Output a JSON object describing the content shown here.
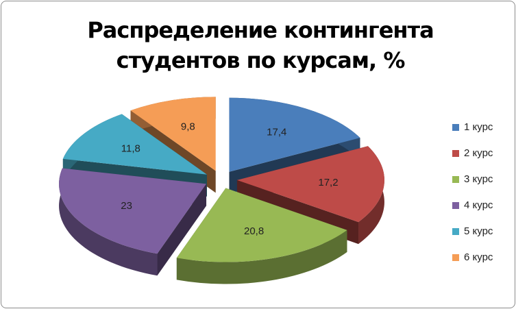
{
  "chart_data": {
    "type": "pie",
    "title": "Распределение контингента студентов по курсам, %",
    "categories": [
      "1 курс",
      "2 курс",
      "3 курс",
      "4 курс",
      "5 курс",
      "6 курс"
    ],
    "values": [
      17.4,
      17.2,
      20.8,
      23,
      11.8,
      9.8
    ],
    "value_labels": [
      "17,4",
      "17,2",
      "20,8",
      "23",
      "11,8",
      "9,8"
    ],
    "colors": [
      "#4a7ebb",
      "#be4b48",
      "#98b954",
      "#7d60a0",
      "#46aac5",
      "#f59d56"
    ],
    "legend": "right"
  }
}
